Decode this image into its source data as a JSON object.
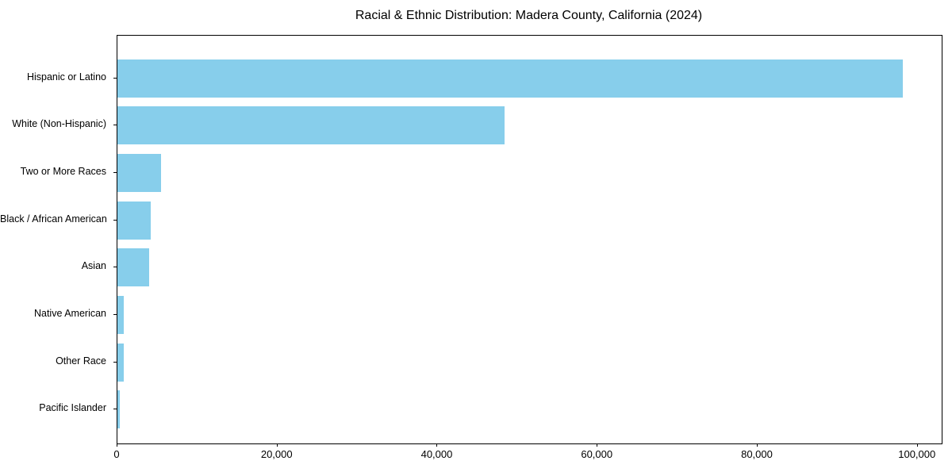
{
  "chart_data": {
    "type": "bar",
    "orientation": "horizontal",
    "title": "Racial & Ethnic Distribution: Madera County, California (2024)",
    "categories": [
      "Hispanic or Latino",
      "White (Non-Hispanic)",
      "Two or More Races",
      "Black / African American",
      "Asian",
      "Native American",
      "Other Race",
      "Pacific Islander"
    ],
    "values": [
      98100,
      48400,
      5500,
      4200,
      3950,
      800,
      750,
      250
    ],
    "xlabel": "",
    "ylabel": "",
    "xlim": [
      0,
      103000
    ],
    "xticks": [
      0,
      20000,
      40000,
      60000,
      80000,
      100000
    ],
    "xtick_labels": [
      "0",
      "20,000",
      "40,000",
      "60,000",
      "80,000",
      "100,000"
    ],
    "bar_color": "#87CEEB",
    "axis_color": "#000000",
    "background_color": "#ffffff",
    "grid": false,
    "legend": "none"
  }
}
